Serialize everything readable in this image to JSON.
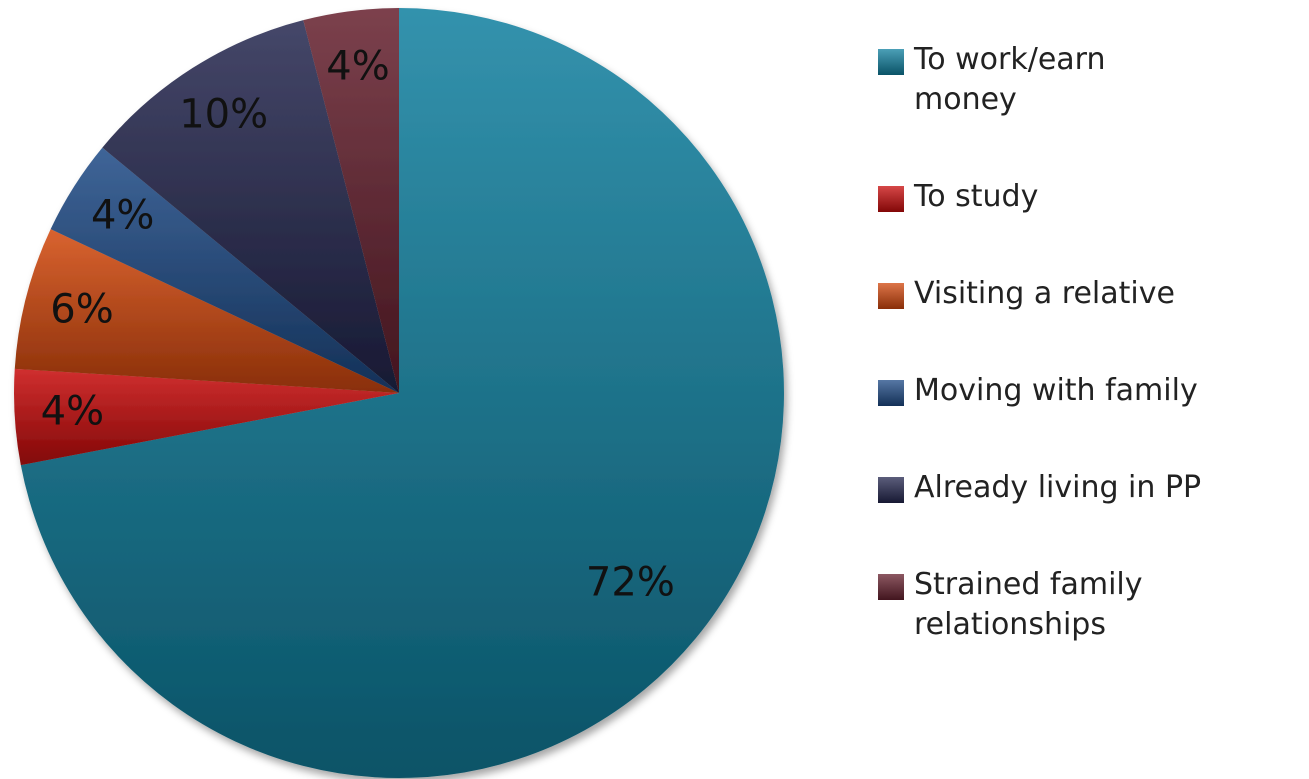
{
  "chart_data": {
    "type": "pie",
    "categories": [
      "To work/earn money",
      "To study",
      "Visiting a relative",
      "Moving with family",
      "Already living in PP",
      "Strained family relationships"
    ],
    "values": [
      72,
      4,
      6,
      4,
      10,
      4
    ],
    "value_labels": [
      "72%",
      "4%",
      "6%",
      "4%",
      "10%",
      "4%"
    ],
    "colors": [
      "#0f7f9f",
      "#c80a0a",
      "#d2470c",
      "#1d4a86",
      "#24274f",
      "#65202e"
    ],
    "legend": "right"
  }
}
